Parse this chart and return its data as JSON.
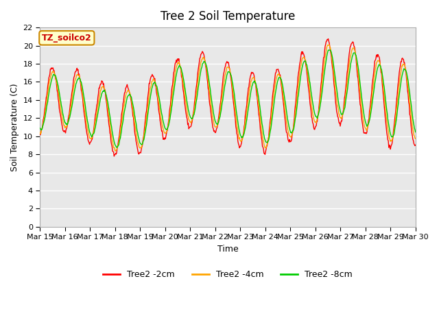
{
  "title": "Tree 2 Soil Temperature",
  "xlabel": "Time",
  "ylabel": "Soil Temperature (C)",
  "annotation": "TZ_soilco2",
  "ylim": [
    0,
    22
  ],
  "yticks": [
    0,
    2,
    4,
    6,
    8,
    10,
    12,
    14,
    16,
    18,
    20,
    22
  ],
  "xtick_labels": [
    "Mar 15",
    "Mar 16",
    "Mar 17",
    "Mar 18",
    "Mar 19",
    "Mar 20",
    "Mar 21",
    "Mar 22",
    "Mar 23",
    "Mar 24",
    "Mar 25",
    "Mar 26",
    "Mar 27",
    "Mar 28",
    "Mar 29",
    "Mar 30"
  ],
  "series": {
    "Tree2 -2cm": {
      "color": "#ff0000",
      "lw": 1.0
    },
    "Tree2 -4cm": {
      "color": "#ffa500",
      "lw": 1.0
    },
    "Tree2 -8cm": {
      "color": "#00cc00",
      "lw": 1.0
    }
  },
  "bg_color": "#e8e8e8",
  "grid_color": "#ffffff",
  "annotation_bg": "#ffffcc",
  "annotation_border": "#cc8800",
  "annotation_text_color": "#cc0000"
}
